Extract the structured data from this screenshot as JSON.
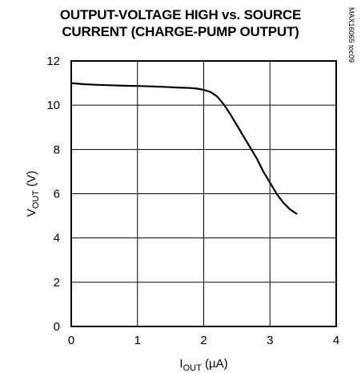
{
  "title": {
    "line1": "OUTPUT-VOLTAGE HIGH vs. SOURCE",
    "line2": "CURRENT (CHARGE-PUMP OUTPUT)"
  },
  "figure_code": "MAX16065 toc09",
  "chart_data": {
    "type": "line",
    "title": "OUTPUT-VOLTAGE HIGH vs. SOURCE CURRENT (CHARGE-PUMP OUTPUT)",
    "xlabel": {
      "main": "I",
      "sub": "OUT",
      "unit": " (µA)"
    },
    "ylabel": {
      "main": "V",
      "sub": "OUT",
      "unit": " (V)"
    },
    "xlim": [
      0,
      4
    ],
    "ylim": [
      0,
      12
    ],
    "xticks": [
      0,
      1,
      2,
      3,
      4
    ],
    "yticks": [
      0,
      2,
      4,
      6,
      8,
      10,
      12
    ],
    "grid": true,
    "series": [
      {
        "x": [
          0,
          0.2,
          0.4,
          0.6,
          0.8,
          1.0,
          1.2,
          1.4,
          1.6,
          1.8,
          1.9,
          2.0,
          2.1,
          2.2,
          2.3,
          2.4,
          2.5,
          2.6,
          2.7,
          2.8,
          2.9,
          3.0,
          3.1,
          3.2,
          3.3,
          3.4
        ],
        "y": [
          11.0,
          10.95,
          10.92,
          10.9,
          10.88,
          10.87,
          10.85,
          10.83,
          10.8,
          10.78,
          10.75,
          10.7,
          10.6,
          10.4,
          10.05,
          9.6,
          9.1,
          8.6,
          8.1,
          7.6,
          7.0,
          6.5,
          6.0,
          5.6,
          5.3,
          5.1
        ]
      }
    ]
  }
}
